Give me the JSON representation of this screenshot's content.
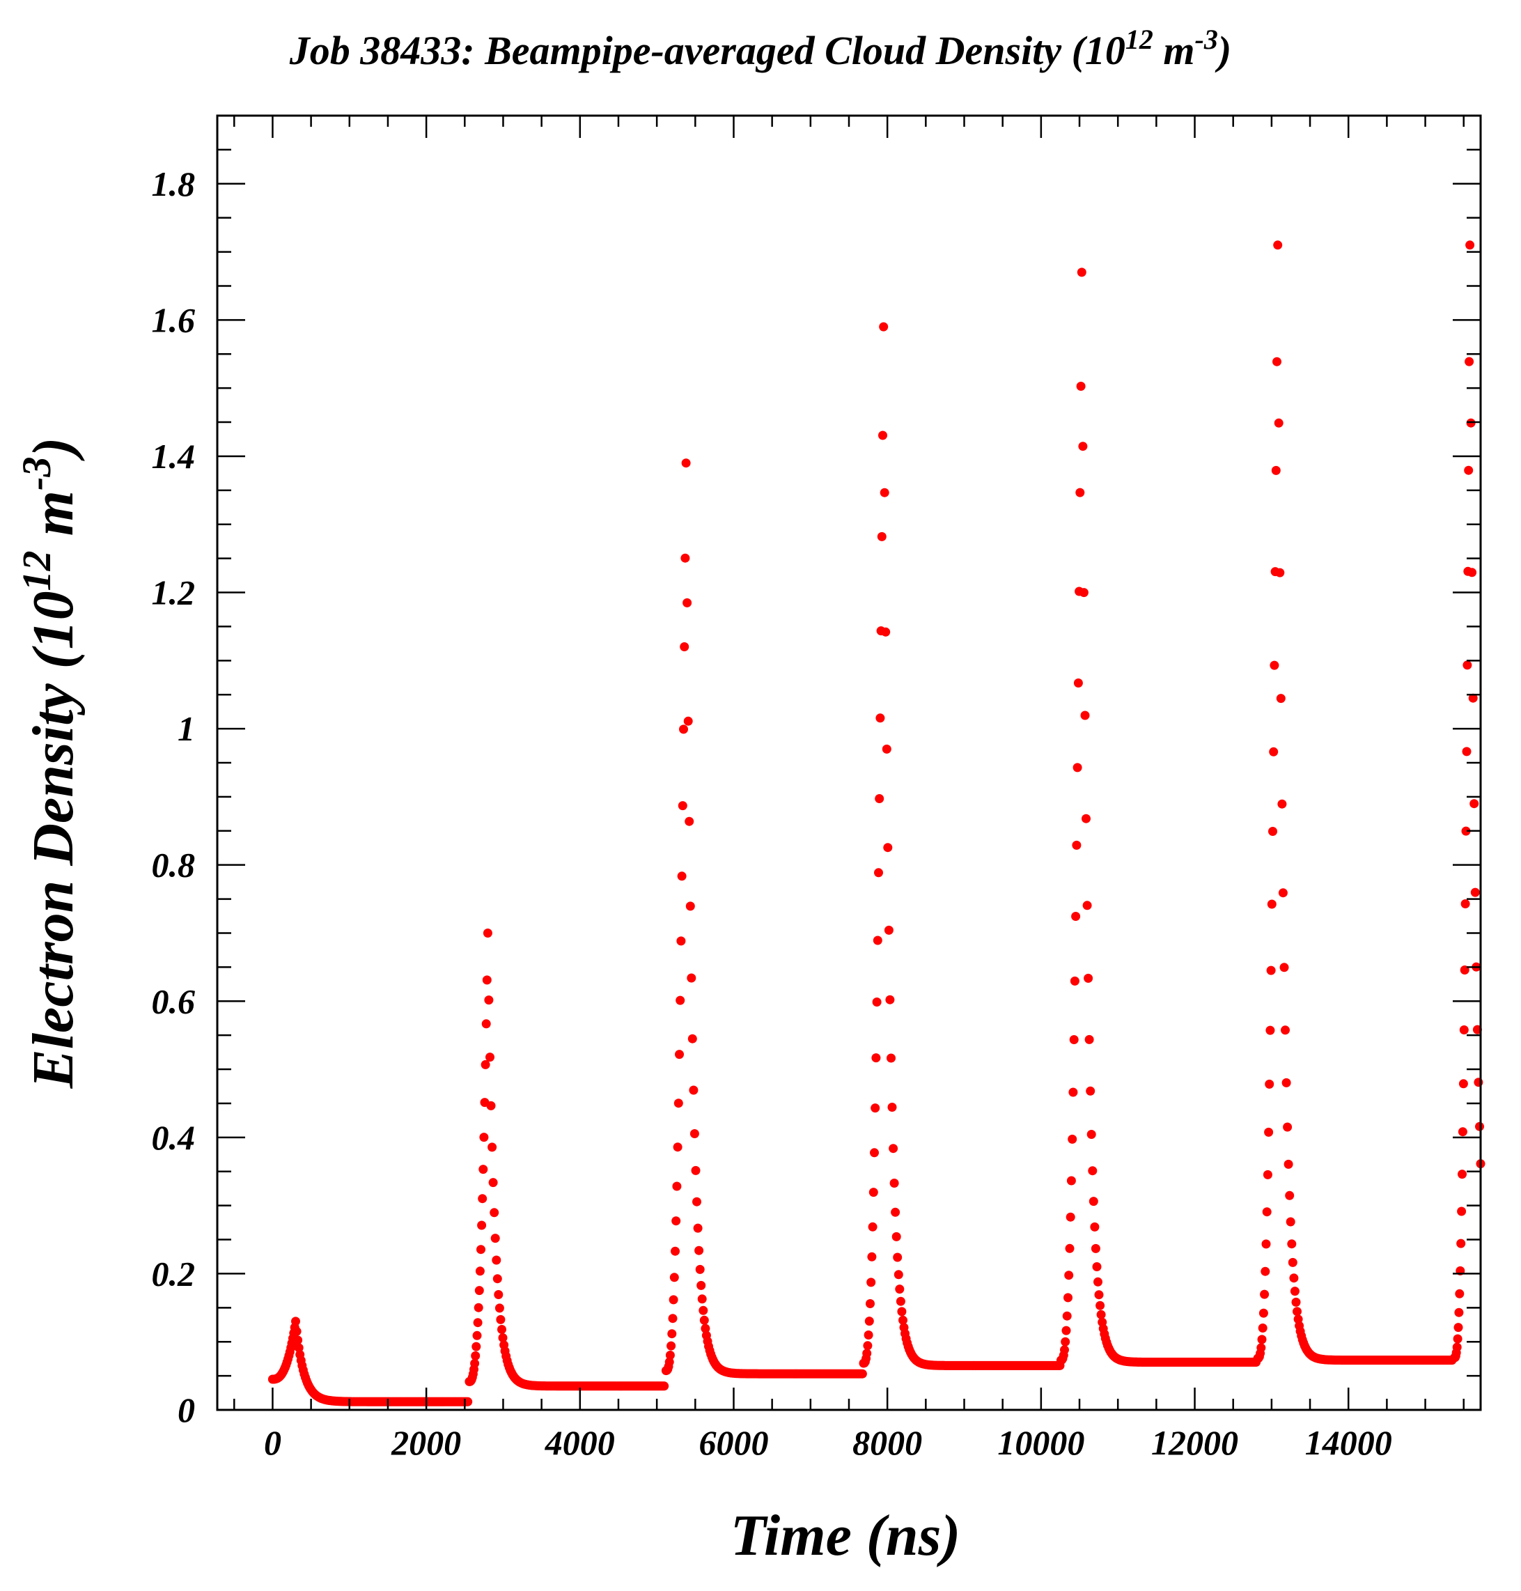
{
  "chart_data": {
    "type": "scatter",
    "title_main": "Job 38433: Beampipe-averaged Cloud Density (10",
    "title_exp": "12",
    "title_mid": " m",
    "title_exp2": "-3",
    "title_end": ")",
    "xlabel": "Time (ns)",
    "ylabel_main": "Electron Density (10",
    "ylabel_exp": "12",
    "ylabel_mid": " m",
    "ylabel_exp2": "-3",
    "ylabel_end": ")",
    "xlim": [
      -720,
      15720
    ],
    "ylim": [
      0,
      1.9
    ],
    "x_ticks": [
      0,
      2000,
      4000,
      6000,
      8000,
      10000,
      12000,
      14000
    ],
    "x_tick_labels": [
      "0",
      "2000",
      "4000",
      "6000",
      "8000",
      "10000",
      "12000",
      "14000"
    ],
    "y_ticks": [
      0,
      0.2,
      0.4,
      0.6,
      0.8,
      1,
      1.2,
      1.4,
      1.6,
      1.8
    ],
    "y_tick_labels": [
      "0",
      "0.2",
      "0.4",
      "0.6",
      "0.8",
      "1",
      "1.2",
      "1.4",
      "1.6",
      "1.8"
    ],
    "grid": false,
    "marker_color": "#ff0000",
    "baseline_color": "#b00000",
    "baseline": {
      "x": [
        -720,
        0
      ],
      "y": 0
    },
    "bunch_trains": [
      {
        "start": 0,
        "peak_x": 300,
        "peak_y": 0.13,
        "end": 2550,
        "floor": 0.012,
        "decay": 300
      },
      {
        "start": 2560,
        "peak_x": 2800,
        "peak_y": 0.7,
        "end": 5100,
        "floor": 0.035,
        "decay": 250
      },
      {
        "start": 5120,
        "peak_x": 5380,
        "peak_y": 1.39,
        "end": 7680,
        "floor": 0.053,
        "decay": 240
      },
      {
        "start": 7690,
        "peak_x": 7950,
        "peak_y": 1.59,
        "end": 10250,
        "floor": 0.065,
        "decay": 230
      },
      {
        "start": 10260,
        "peak_x": 10530,
        "peak_y": 1.67,
        "end": 12800,
        "floor": 0.07,
        "decay": 230
      },
      {
        "start": 12820,
        "peak_x": 13080,
        "peak_y": 1.71,
        "end": 15360,
        "floor": 0.073,
        "decay": 230
      },
      {
        "start": 15380,
        "peak_x": 15580,
        "peak_y": 1.71,
        "end": 15720,
        "floor": 0.074,
        "decay": 230
      }
    ]
  }
}
